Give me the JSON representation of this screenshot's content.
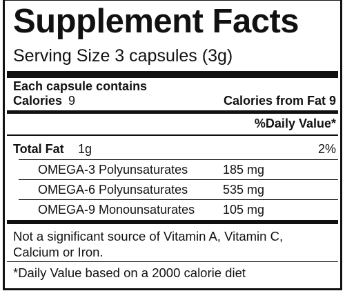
{
  "title": "Supplement Facts",
  "serving_size": "Serving Size 3 capsules (3g)",
  "per": "Each capsule contains",
  "calories": {
    "label": "Calories",
    "value": "9"
  },
  "calories_from_fat": "Calories from Fat 9",
  "daily_value_header": "%Daily Value*",
  "total_fat": {
    "label": "Total Fat",
    "amount": "1g",
    "daily_value": "2%"
  },
  "rows": [
    {
      "name": "OMEGA-3 Polyunsaturates",
      "amount": "185 mg"
    },
    {
      "name": "OMEGA-6 Polyunsaturates",
      "amount": "535 mg"
    },
    {
      "name": "OMEGA-9 Monounsaturates",
      "amount": "105 mg"
    }
  ],
  "notes": [
    "Not a significant source of Vitamin A, Vitamin C, Calcium or Iron.",
    "*Daily Value based on a 2000 calorie diet"
  ]
}
